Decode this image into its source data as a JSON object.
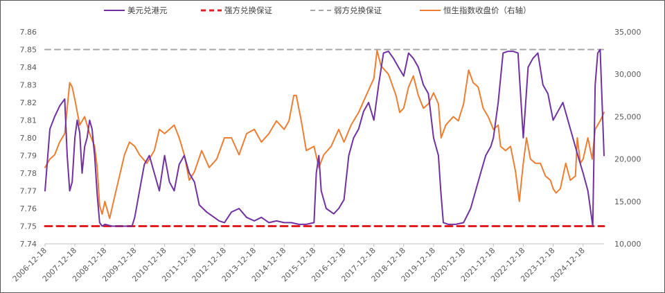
{
  "chart_data": {
    "type": "line",
    "title": "",
    "legend": {
      "placement": "top",
      "entries": [
        {
          "label": "美元兑港元",
          "color": "#7030A0",
          "style": "solid"
        },
        {
          "label": "强方兑换保证",
          "color": "#E02020",
          "style": "dashed"
        },
        {
          "label": "弱方兑换保证",
          "color": "#A6A6A6",
          "style": "dashed"
        },
        {
          "label": "恒生指数收盘价（右轴）",
          "color": "#ED7D31",
          "style": "solid"
        }
      ]
    },
    "x_axis": {
      "type": "date",
      "range": [
        "2006-12-18",
        "2025-08-31"
      ],
      "tick_labels": [
        "2006-12-18",
        "2007-12-18",
        "2008-12-18",
        "2009-12-18",
        "2010-12-18",
        "2011-12-18",
        "2012-12-18",
        "2013-12-18",
        "2014-12-18",
        "2015-12-18",
        "2016-12-18",
        "2017-12-18",
        "2018-12-18",
        "2019-12-18",
        "2020-12-18",
        "2021-12-18",
        "2022-12-18",
        "2023-12-18",
        "2024-12-18"
      ]
    },
    "y_left": {
      "range": [
        7.74,
        7.86
      ],
      "tick_labels": [
        "7.74",
        "7.75",
        "7.76",
        "7.77",
        "7.78",
        "7.79",
        "7.80",
        "7.81",
        "7.82",
        "7.83",
        "7.84",
        "7.85",
        "7.86"
      ]
    },
    "y_right": {
      "range": [
        10000,
        35000
      ],
      "tick_labels": [
        "10,000",
        "15,000",
        "20,000",
        "25,000",
        "30,000",
        "35,000"
      ]
    },
    "grid": false,
    "series": [
      {
        "name": "美元兑港元",
        "axis": "left",
        "x": [
          "2006-12-18",
          "2007-02-15",
          "2007-04-15",
          "2007-06-15",
          "2007-08-15",
          "2007-09-15",
          "2007-10-15",
          "2007-11-15",
          "2007-12-18",
          "2008-01-15",
          "2008-02-15",
          "2008-03-15",
          "2008-04-15",
          "2008-05-15",
          "2008-06-15",
          "2008-07-15",
          "2008-08-15",
          "2008-09-15",
          "2008-10-15",
          "2008-11-15",
          "2008-12-18",
          "2009-03-15",
          "2009-06-15",
          "2009-09-15",
          "2009-11-15",
          "2009-12-18",
          "2010-02-15",
          "2010-04-15",
          "2010-06-15",
          "2010-08-15",
          "2010-10-15",
          "2010-12-18",
          "2011-02-15",
          "2011-04-15",
          "2011-06-15",
          "2011-08-15",
          "2011-10-15",
          "2011-12-18",
          "2012-02-15",
          "2012-05-15",
          "2012-08-15",
          "2012-10-15",
          "2012-12-18",
          "2013-03-15",
          "2013-06-15",
          "2013-09-15",
          "2013-12-18",
          "2014-03-15",
          "2014-06-15",
          "2014-09-15",
          "2014-12-18",
          "2015-03-15",
          "2015-06-15",
          "2015-09-15",
          "2015-12-18",
          "2016-01-15",
          "2016-02-15",
          "2016-03-15",
          "2016-05-15",
          "2016-08-15",
          "2016-10-15",
          "2016-12-18",
          "2017-02-15",
          "2017-04-15",
          "2017-06-15",
          "2017-08-15",
          "2017-10-15",
          "2017-12-18",
          "2018-02-15",
          "2018-04-15",
          "2018-06-15",
          "2018-08-15",
          "2018-10-15",
          "2018-12-18",
          "2019-02-15",
          "2019-04-15",
          "2019-06-15",
          "2019-08-15",
          "2019-10-15",
          "2019-12-18",
          "2020-02-15",
          "2020-03-15",
          "2020-04-15",
          "2020-06-15",
          "2020-09-15",
          "2020-12-18",
          "2021-03-15",
          "2021-05-15",
          "2021-07-15",
          "2021-09-15",
          "2021-11-15",
          "2021-12-18",
          "2022-02-15",
          "2022-04-15",
          "2022-06-15",
          "2022-08-15",
          "2022-10-15",
          "2022-12-18",
          "2023-02-15",
          "2023-04-15",
          "2023-06-15",
          "2023-08-15",
          "2023-10-15",
          "2023-12-18",
          "2024-02-15",
          "2024-04-15",
          "2024-06-15",
          "2024-08-15",
          "2024-10-15",
          "2024-12-18",
          "2025-02-15",
          "2025-04-15",
          "2025-05-15",
          "2025-06-15",
          "2025-07-15",
          "2025-08-31"
        ],
        "y": [
          7.77,
          7.805,
          7.812,
          7.818,
          7.822,
          7.79,
          7.77,
          7.775,
          7.8,
          7.81,
          7.803,
          7.78,
          7.795,
          7.8,
          7.81,
          7.805,
          7.79,
          7.768,
          7.752,
          7.75,
          7.751,
          7.75,
          7.75,
          7.75,
          7.75,
          7.755,
          7.77,
          7.785,
          7.79,
          7.78,
          7.77,
          7.79,
          7.775,
          7.77,
          7.785,
          7.79,
          7.78,
          7.775,
          7.762,
          7.758,
          7.755,
          7.753,
          7.752,
          7.758,
          7.76,
          7.755,
          7.753,
          7.755,
          7.752,
          7.753,
          7.752,
          7.752,
          7.751,
          7.751,
          7.752,
          7.78,
          7.79,
          7.77,
          7.76,
          7.757,
          7.76,
          7.765,
          7.79,
          7.8,
          7.805,
          7.815,
          7.82,
          7.81,
          7.83,
          7.848,
          7.849,
          7.845,
          7.84,
          7.835,
          7.848,
          7.845,
          7.84,
          7.83,
          7.825,
          7.8,
          7.79,
          7.77,
          7.752,
          7.751,
          7.751,
          7.752,
          7.76,
          7.77,
          7.78,
          7.79,
          7.795,
          7.8,
          7.82,
          7.848,
          7.849,
          7.849,
          7.848,
          7.8,
          7.84,
          7.845,
          7.848,
          7.83,
          7.825,
          7.81,
          7.815,
          7.82,
          7.81,
          7.8,
          7.79,
          7.78,
          7.77,
          7.75,
          7.83,
          7.848,
          7.85,
          7.79
        ]
      },
      {
        "name": "强方兑换保证",
        "axis": "left",
        "x": [
          "2006-12-18",
          "2025-08-31"
        ],
        "y": [
          7.75,
          7.75
        ]
      },
      {
        "name": "弱方兑换保证",
        "axis": "left",
        "x": [
          "2006-12-18",
          "2025-08-31"
        ],
        "y": [
          7.85,
          7.85
        ]
      },
      {
        "name": "恒生指数收盘价（右轴）",
        "axis": "right",
        "x": [
          "2006-12-18",
          "2007-02-15",
          "2007-04-15",
          "2007-06-15",
          "2007-08-15",
          "2007-10-15",
          "2007-11-15",
          "2007-12-18",
          "2008-02-15",
          "2008-04-15",
          "2008-06-15",
          "2008-08-15",
          "2008-09-15",
          "2008-10-15",
          "2008-11-15",
          "2008-12-18",
          "2009-02-15",
          "2009-04-15",
          "2009-06-15",
          "2009-08-15",
          "2009-10-15",
          "2009-12-18",
          "2010-02-15",
          "2010-05-15",
          "2010-08-15",
          "2010-10-15",
          "2010-12-18",
          "2011-02-15",
          "2011-04-15",
          "2011-06-15",
          "2011-08-15",
          "2011-10-15",
          "2011-12-18",
          "2012-03-15",
          "2012-06-15",
          "2012-09-15",
          "2012-12-18",
          "2013-03-15",
          "2013-06-15",
          "2013-09-15",
          "2013-12-18",
          "2014-03-15",
          "2014-06-15",
          "2014-09-15",
          "2014-12-18",
          "2015-02-15",
          "2015-04-15",
          "2015-05-15",
          "2015-07-15",
          "2015-09-15",
          "2015-12-18",
          "2016-02-15",
          "2016-04-15",
          "2016-07-15",
          "2016-10-15",
          "2016-12-18",
          "2017-03-15",
          "2017-06-15",
          "2017-09-15",
          "2017-12-18",
          "2018-01-26",
          "2018-03-15",
          "2018-06-15",
          "2018-09-15",
          "2018-10-30",
          "2018-12-18",
          "2019-02-15",
          "2019-04-15",
          "2019-06-15",
          "2019-08-15",
          "2019-10-15",
          "2019-12-18",
          "2020-02-15",
          "2020-03-19",
          "2020-05-15",
          "2020-08-15",
          "2020-10-15",
          "2020-12-18",
          "2021-02-18",
          "2021-04-15",
          "2021-06-15",
          "2021-08-15",
          "2021-10-15",
          "2021-12-18",
          "2022-02-15",
          "2022-03-15",
          "2022-05-15",
          "2022-07-15",
          "2022-09-15",
          "2022-10-31",
          "2022-12-18",
          "2023-01-27",
          "2023-03-15",
          "2023-05-15",
          "2023-07-15",
          "2023-09-15",
          "2023-11-15",
          "2023-12-18",
          "2024-01-22",
          "2024-03-15",
          "2024-05-20",
          "2024-07-15",
          "2024-09-15",
          "2024-10-08",
          "2024-11-15",
          "2024-12-18",
          "2025-02-15",
          "2025-04-08",
          "2025-05-15",
          "2025-07-15",
          "2025-08-31"
        ],
        "y": [
          19000,
          20000,
          20500,
          22000,
          23000,
          29000,
          28500,
          27000,
          24000,
          25000,
          23000,
          21500,
          19000,
          14500,
          13500,
          15000,
          13000,
          15500,
          18000,
          20500,
          22000,
          21500,
          20500,
          19500,
          21000,
          23500,
          23000,
          23500,
          24000,
          22500,
          20500,
          17500,
          18500,
          21000,
          19000,
          20000,
          22500,
          22500,
          20500,
          23000,
          23500,
          22000,
          23000,
          24500,
          23500,
          24500,
          27500,
          27500,
          24500,
          21000,
          21500,
          19000,
          20500,
          21500,
          23500,
          22000,
          24000,
          25500,
          27500,
          29500,
          32800,
          31000,
          30000,
          27500,
          25500,
          26000,
          28500,
          29800,
          27500,
          26000,
          26500,
          27800,
          26500,
          22500,
          24000,
          25000,
          24500,
          26500,
          30500,
          29000,
          28500,
          26000,
          25000,
          23500,
          24000,
          21500,
          21000,
          21500,
          18500,
          15000,
          19500,
          22500,
          20000,
          19500,
          19500,
          18000,
          17500,
          16500,
          16000,
          16500,
          19500,
          17500,
          18000,
          22500,
          19500,
          20000,
          22500,
          20000,
          23500,
          24500,
          25500
        ]
      }
    ]
  }
}
